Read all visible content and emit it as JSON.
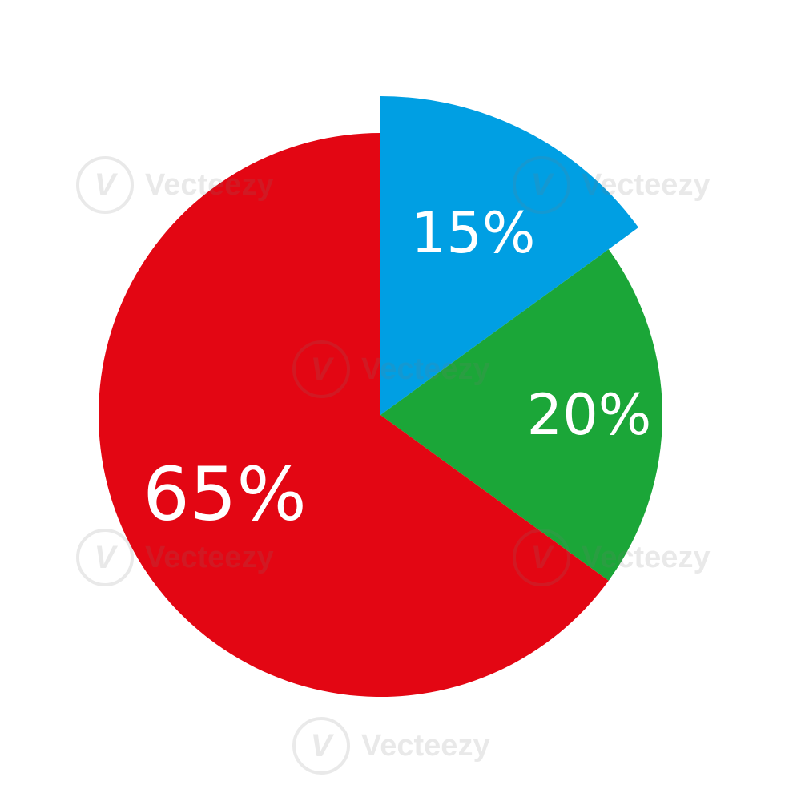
{
  "chart_data": {
    "type": "pie",
    "title": "",
    "slices": [
      {
        "label": "15%",
        "value": 15,
        "color": "#009FE3",
        "exploded": true
      },
      {
        "label": "20%",
        "value": 20,
        "color": "#1BA638",
        "exploded": false
      },
      {
        "label": "65%",
        "value": 65,
        "color": "#E30613",
        "exploded": false
      }
    ],
    "start_angle": "12 o'clock",
    "direction": "clockwise",
    "legend": "none"
  },
  "watermark": {
    "text": "Vecteezy",
    "logo_glyph": "V"
  }
}
